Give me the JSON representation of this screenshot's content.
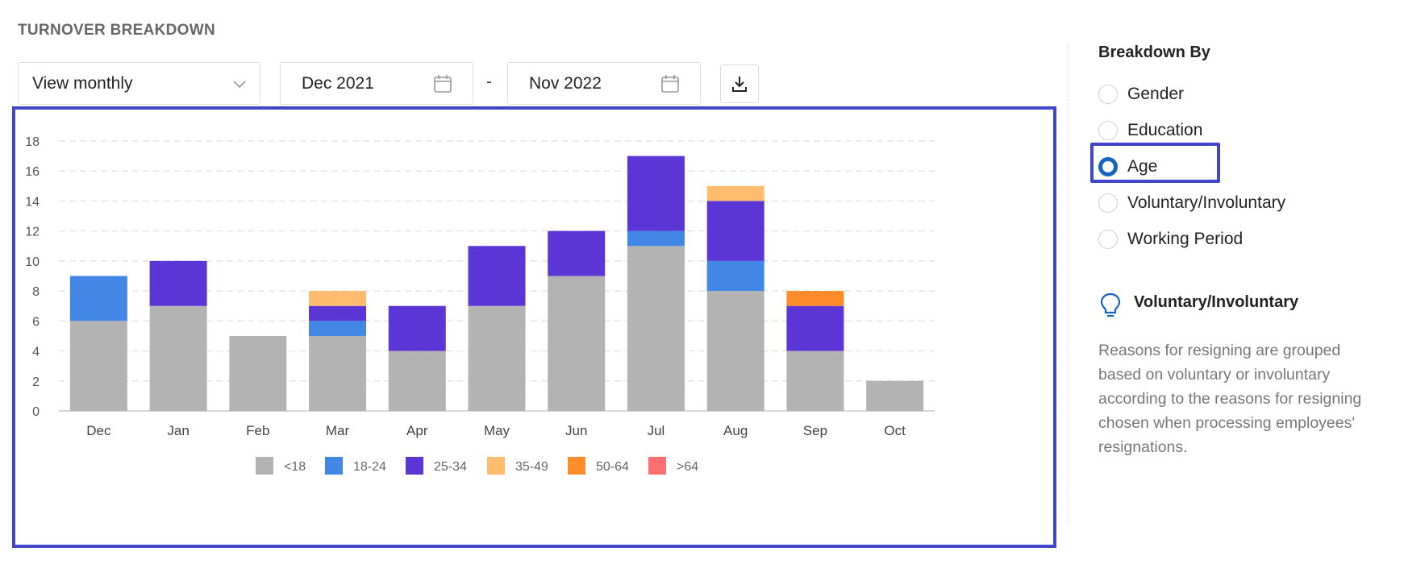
{
  "header": {
    "title": "TURNOVER BREAKDOWN"
  },
  "controls": {
    "view_select": "View monthly",
    "start_date": "Dec 2021",
    "separator": "-",
    "end_date": "Nov 2022"
  },
  "breakdown": {
    "title": "Breakdown By",
    "options": [
      "Gender",
      "Education",
      "Age",
      "Voluntary/Involuntary",
      "Working Period"
    ],
    "selected": "Age"
  },
  "info": {
    "title": "Voluntary/Involuntary",
    "text": "Reasons for resigning are grouped based on voluntary or involuntary according to the reasons for resigning chosen when processing employees' resignations."
  },
  "colors": {
    "accent": "#4145c9",
    "radio_selected": "#1565c0"
  },
  "chart_data": {
    "type": "bar",
    "stacked": true,
    "categories": [
      "Dec",
      "Jan",
      "Feb",
      "Mar",
      "Apr",
      "May",
      "Jun",
      "Jul",
      "Aug",
      "Sep",
      "Oct"
    ],
    "series": [
      {
        "name": "<18",
        "color": "#b3b3b3",
        "values": [
          6,
          7,
          5,
          5,
          4,
          7,
          9,
          11,
          8,
          4,
          2
        ]
      },
      {
        "name": "18-24",
        "color": "#4287e6",
        "values": [
          3,
          0,
          0,
          1,
          0,
          0,
          0,
          1,
          2,
          0,
          0
        ]
      },
      {
        "name": "25-34",
        "color": "#5b35d6",
        "values": [
          0,
          3,
          0,
          1,
          3,
          4,
          3,
          5,
          4,
          3,
          0
        ]
      },
      {
        "name": "35-49",
        "color": "#ffbb6e",
        "values": [
          0,
          0,
          0,
          1,
          0,
          0,
          0,
          0,
          1,
          0,
          0
        ]
      },
      {
        "name": "50-64",
        "color": "#ff8c2a",
        "values": [
          0,
          0,
          0,
          0,
          0,
          0,
          0,
          0,
          0,
          1,
          0
        ]
      },
      {
        "name": ">64",
        "color": "#ff6f70",
        "values": [
          0,
          0,
          0,
          0,
          0,
          0,
          0,
          0,
          0,
          0,
          0
        ]
      }
    ],
    "ylim": [
      0,
      18
    ],
    "yticks": [
      0,
      2,
      4,
      6,
      8,
      10,
      12,
      14,
      16,
      18
    ],
    "grid": true,
    "legend": "bottom"
  }
}
